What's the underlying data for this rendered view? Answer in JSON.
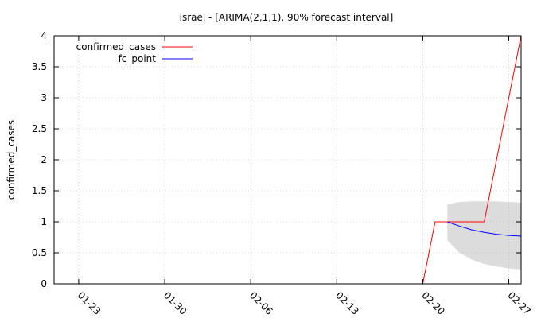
{
  "chart_data": {
    "type": "line",
    "title": "israel -  [ARIMA(2,1,1), 90% forecast interval]",
    "xlabel": "",
    "ylabel": "confirmed_cases",
    "x_type": "date",
    "x_tick_labels": [
      "01-23",
      "01-30",
      "02-06",
      "02-13",
      "02-20",
      "02-27"
    ],
    "x_tick_dates": [
      "2020-01-23",
      "2020-01-30",
      "2020-02-06",
      "2020-02-13",
      "2020-02-20",
      "2020-02-27"
    ],
    "xlim": [
      "2020-01-21",
      "2020-02-28"
    ],
    "y_tick_labels": [
      "0",
      "0.5",
      "1",
      "1.5",
      "2",
      "2.5",
      "3",
      "3.5",
      "4"
    ],
    "y_ticks": [
      0,
      0.5,
      1,
      1.5,
      2,
      2.5,
      3,
      3.5,
      4
    ],
    "ylim": [
      0,
      4
    ],
    "grid": true,
    "legend_position": "top-left",
    "series": [
      {
        "name": "confirmed_cases",
        "color": "#ff0000",
        "points": [
          {
            "x": "2020-02-20",
            "y": 0
          },
          {
            "x": "2020-02-21",
            "y": 1
          },
          {
            "x": "2020-02-22",
            "y": 1
          },
          {
            "x": "2020-02-23",
            "y": 1
          },
          {
            "x": "2020-02-24",
            "y": 1
          },
          {
            "x": "2020-02-25",
            "y": 1
          },
          {
            "x": "2020-02-26",
            "y": 2
          },
          {
            "x": "2020-02-27",
            "y": 3
          },
          {
            "x": "2020-02-28",
            "y": 4
          }
        ]
      },
      {
        "name": "fc_point",
        "color": "#0000ff",
        "points": [
          {
            "x": "2020-02-22",
            "y": 1.0
          },
          {
            "x": "2020-02-23",
            "y": 0.93
          },
          {
            "x": "2020-02-24",
            "y": 0.87
          },
          {
            "x": "2020-02-25",
            "y": 0.83
          },
          {
            "x": "2020-02-26",
            "y": 0.8
          },
          {
            "x": "2020-02-27",
            "y": 0.78
          },
          {
            "x": "2020-02-28",
            "y": 0.77
          }
        ]
      }
    ],
    "forecast_interval": {
      "level": "90%",
      "color": "#dcdcdc",
      "points": [
        {
          "x": "2020-02-22",
          "lower": 0.7,
          "upper": 1.28
        },
        {
          "x": "2020-02-23",
          "lower": 0.5,
          "upper": 1.32
        },
        {
          "x": "2020-02-24",
          "lower": 0.39,
          "upper": 1.33
        },
        {
          "x": "2020-02-25",
          "lower": 0.32,
          "upper": 1.33
        },
        {
          "x": "2020-02-26",
          "lower": 0.28,
          "upper": 1.33
        },
        {
          "x": "2020-02-27",
          "lower": 0.25,
          "upper": 1.32
        },
        {
          "x": "2020-02-28",
          "lower": 0.23,
          "upper": 1.31
        }
      ]
    }
  }
}
